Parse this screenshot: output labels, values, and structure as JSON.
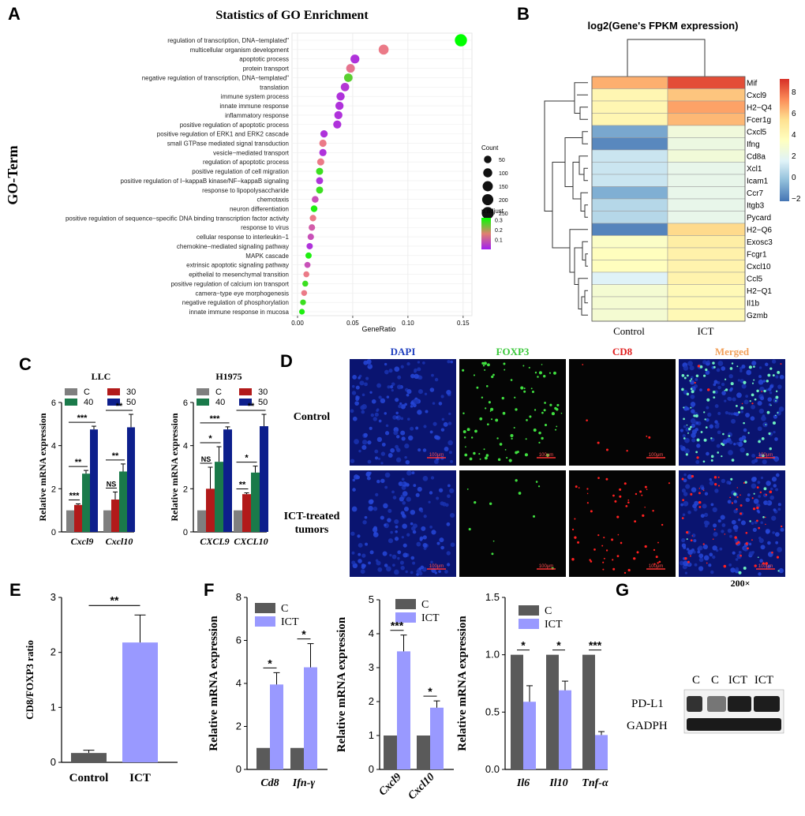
{
  "panel_labels": {
    "A": "A",
    "B": "B",
    "C": "C",
    "D": "D",
    "E": "E",
    "F": "F",
    "G": "G"
  },
  "chart_data": [
    {
      "id": "A",
      "type": "scatter",
      "title": "Statistics of GO Enrichment",
      "xlabel": "GeneRatio",
      "ylabel": "GO-Term",
      "xlim": [
        -0.005,
        0.158
      ],
      "xticks": [
        "0.00",
        "0.05",
        "0.10",
        "0.15"
      ],
      "xtick_values": [
        0.0,
        0.05,
        0.1,
        0.15
      ],
      "grid": true,
      "size_legend_title": "Count",
      "size_legend": [
        50,
        100,
        150,
        200,
        250
      ],
      "color_legend_title": "p.adjust",
      "color_legend_ticks": [
        "0.3",
        "0.2",
        "0.1"
      ],
      "color_legend_tick_values": [
        0.3,
        0.2,
        0.1
      ],
      "color_scale": {
        "low": "#a020f0",
        "mid": "#f08080",
        "high": "#00ff00"
      },
      "terms": [
        {
          "term": "regulation of transcription, DNA−templated\"",
          "ratio": 0.148,
          "count": 260,
          "padj": 0.32
        },
        {
          "term": "multicellular organism development",
          "ratio": 0.078,
          "count": 140,
          "padj": 0.15
        },
        {
          "term": "apoptotic process",
          "ratio": 0.052,
          "count": 95,
          "padj": 0.03
        },
        {
          "term": "protein transport",
          "ratio": 0.048,
          "count": 85,
          "padj": 0.14
        },
        {
          "term": "negative regulation of transcription, DNA−templated\"",
          "ratio": 0.046,
          "count": 80,
          "padj": 0.26
        },
        {
          "term": "translation",
          "ratio": 0.043,
          "count": 78,
          "padj": 0.04
        },
        {
          "term": "immune system process",
          "ratio": 0.039,
          "count": 72,
          "padj": 0.03
        },
        {
          "term": "innate immune response",
          "ratio": 0.038,
          "count": 70,
          "padj": 0.03
        },
        {
          "term": "inflammatory response",
          "ratio": 0.037,
          "count": 68,
          "padj": 0.03
        },
        {
          "term": "positive regulation of apoptotic process",
          "ratio": 0.036,
          "count": 66,
          "padj": 0.03
        },
        {
          "term": "positive regulation of ERK1 and ERK2 cascade",
          "ratio": 0.024,
          "count": 44,
          "padj": 0.03
        },
        {
          "term": "small GTPase mediated signal transduction",
          "ratio": 0.023,
          "count": 42,
          "padj": 0.15
        },
        {
          "term": "vesicle−mediated transport",
          "ratio": 0.023,
          "count": 42,
          "padj": 0.03
        },
        {
          "term": "regulation of apoptotic process",
          "ratio": 0.021,
          "count": 40,
          "padj": 0.15
        },
        {
          "term": "positive regulation of cell migration",
          "ratio": 0.02,
          "count": 38,
          "padj": 0.28
        },
        {
          "term": "positive regulation of I−kappaB kinase/NF−kappaB signaling",
          "ratio": 0.02,
          "count": 37,
          "padj": 0.03
        },
        {
          "term": "response to lipopolysaccharide",
          "ratio": 0.02,
          "count": 37,
          "padj": 0.28
        },
        {
          "term": "chemotaxis",
          "ratio": 0.016,
          "count": 30,
          "padj": 0.08
        },
        {
          "term": "neuron differentiation",
          "ratio": 0.015,
          "count": 28,
          "padj": 0.3
        },
        {
          "term": "positive regulation of sequence−specific DNA binding transcription factor activity",
          "ratio": 0.014,
          "count": 26,
          "padj": 0.15
        },
        {
          "term": "response to virus",
          "ratio": 0.013,
          "count": 25,
          "padj": 0.1
        },
        {
          "term": "cellular response to interleukin−1",
          "ratio": 0.012,
          "count": 23,
          "padj": 0.08
        },
        {
          "term": "chemokine−mediated signaling pathway",
          "ratio": 0.011,
          "count": 22,
          "padj": 0.03
        },
        {
          "term": "MAPK cascade",
          "ratio": 0.01,
          "count": 20,
          "padj": 0.3
        },
        {
          "term": "extrinsic apoptotic signaling pathway",
          "ratio": 0.009,
          "count": 18,
          "padj": 0.08
        },
        {
          "term": "epithelial to mesenchymal transition",
          "ratio": 0.008,
          "count": 16,
          "padj": 0.15
        },
        {
          "term": "positive regulation of calcium ion transport",
          "ratio": 0.007,
          "count": 15,
          "padj": 0.28
        },
        {
          "term": "camera−type eye morphogenesis",
          "ratio": 0.006,
          "count": 14,
          "padj": 0.15
        },
        {
          "term": "negative regulation of phosphorylation",
          "ratio": 0.005,
          "count": 13,
          "padj": 0.28
        },
        {
          "term": "innate immune response in mucosa",
          "ratio": 0.004,
          "count": 12,
          "padj": 0.3
        }
      ]
    },
    {
      "id": "B",
      "type": "heatmap",
      "title": "log2(Gene's FPKM expression)",
      "columns": [
        "Control",
        "ICT"
      ],
      "rows": [
        "Mif",
        "Cxcl9",
        "H2−Q4",
        "Fcer1g",
        "Cxcl5",
        "Ifng",
        "Cd8a",
        "Xcl1",
        "Icam1",
        "Ccr7",
        "Itgb3",
        "Pycard",
        "H2−Q6",
        "Exosc3",
        "Fcgr1",
        "Cxcl10",
        "Ccl5",
        "H2−Q1",
        "Il1b",
        "Gzmb"
      ],
      "values": [
        [
          6.5,
          8.6
        ],
        [
          4.0,
          6.0
        ],
        [
          4.0,
          6.8
        ],
        [
          4.0,
          6.3
        ],
        [
          -1.0,
          2.5
        ],
        [
          -1.8,
          2.3
        ],
        [
          1.0,
          2.6
        ],
        [
          1.0,
          2.0
        ],
        [
          1.0,
          2.0
        ],
        [
          -0.8,
          2.0
        ],
        [
          0.5,
          2.0
        ],
        [
          0.5,
          2.0
        ],
        [
          -1.9,
          5.5
        ],
        [
          3.2,
          4.5
        ],
        [
          3.5,
          4.3
        ],
        [
          3.5,
          4.2
        ],
        [
          1.5,
          4.2
        ],
        [
          2.8,
          3.8
        ],
        [
          2.8,
          3.8
        ],
        [
          2.8,
          3.8
        ]
      ],
      "colorbar_ticks": [
        "8",
        "6",
        "4",
        "2",
        "0",
        "−2"
      ],
      "colorbar_tick_values": [
        8,
        6,
        4,
        2,
        0,
        -2
      ],
      "vmin": -2.3,
      "vmax": 9.2,
      "colors": [
        "#4575b4",
        "#91bfdb",
        "#e0f3f8",
        "#ffffbf",
        "#fee090",
        "#fc8d59",
        "#d73027"
      ]
    },
    {
      "id": "C1",
      "type": "bar",
      "title": "LLC",
      "ylabel": "Relative mRNA expression",
      "ylim": [
        0,
        6
      ],
      "yticks": [
        "0",
        "2",
        "4",
        "6"
      ],
      "ytick_values": [
        0,
        2,
        4,
        6
      ],
      "categories": [
        "Cxcl9",
        "Cxcl10"
      ],
      "series": [
        {
          "name": "C",
          "color": "#7f7f7f",
          "values": [
            1.0,
            1.0
          ],
          "errors": [
            0.0,
            0.0
          ]
        },
        {
          "name": "30",
          "color": "#b21a1a",
          "values": [
            1.25,
            1.5
          ],
          "errors": [
            0.05,
            0.35
          ]
        },
        {
          "name": "40",
          "color": "#1a7a4a",
          "values": [
            2.7,
            2.8
          ],
          "errors": [
            0.15,
            0.35
          ]
        },
        {
          "name": "50",
          "color": "#0d1f8c",
          "values": [
            4.75,
            4.85
          ],
          "errors": [
            0.15,
            0.6
          ]
        }
      ],
      "significance": [
        {
          "cat": 0,
          "a": 0,
          "b": 1,
          "label": "***"
        },
        {
          "cat": 0,
          "a": 0,
          "b": 2,
          "label": "**"
        },
        {
          "cat": 0,
          "a": 0,
          "b": 3,
          "label": "***"
        },
        {
          "cat": 1,
          "a": 0,
          "b": 1,
          "label": "NS"
        },
        {
          "cat": 1,
          "a": 0,
          "b": 2,
          "label": "**"
        },
        {
          "cat": 1,
          "a": 0,
          "b": 3,
          "label": "**"
        }
      ]
    },
    {
      "id": "C2",
      "type": "bar",
      "title": "H1975",
      "ylabel": "Relative mRNA expression",
      "ylim": [
        0,
        6
      ],
      "yticks": [
        "0",
        "2",
        "4",
        "6"
      ],
      "ytick_values": [
        0,
        2,
        4,
        6
      ],
      "categories": [
        "CXCL9",
        "CXCL10"
      ],
      "series": [
        {
          "name": "C",
          "color": "#7f7f7f",
          "values": [
            1.0,
            1.0
          ],
          "errors": [
            0.0,
            0.0
          ]
        },
        {
          "name": "30",
          "color": "#b21a1a",
          "values": [
            2.0,
            1.75
          ],
          "errors": [
            1.0,
            0.06
          ]
        },
        {
          "name": "40",
          "color": "#1a7a4a",
          "values": [
            3.25,
            2.75
          ],
          "errors": [
            0.7,
            0.3
          ]
        },
        {
          "name": "50",
          "color": "#0d1f8c",
          "values": [
            4.75,
            4.9
          ],
          "errors": [
            0.12,
            0.55
          ]
        }
      ],
      "significance": [
        {
          "cat": 0,
          "a": 0,
          "b": 1,
          "label": "NS"
        },
        {
          "cat": 0,
          "a": 0,
          "b": 2,
          "label": "*"
        },
        {
          "cat": 0,
          "a": 0,
          "b": 3,
          "label": "***"
        },
        {
          "cat": 1,
          "a": 0,
          "b": 1,
          "label": "**"
        },
        {
          "cat": 1,
          "a": 0,
          "b": 2,
          "label": "*"
        },
        {
          "cat": 1,
          "a": 0,
          "b": 3,
          "label": "**"
        }
      ]
    },
    {
      "id": "E",
      "type": "bar",
      "ylabel": "CD8/FOXP3 ratio",
      "ylim": [
        0,
        3
      ],
      "yticks": [
        "0",
        "1",
        "2",
        "3"
      ],
      "ytick_values": [
        0,
        1,
        2,
        3
      ],
      "categories": [
        "Control",
        "ICT"
      ],
      "values": [
        0.17,
        2.18
      ],
      "errors": [
        0.05,
        0.5
      ],
      "colors": [
        "#5a5a5a",
        "#9999ff"
      ],
      "significance": [
        {
          "a": 0,
          "b": 1,
          "label": "**"
        }
      ]
    },
    {
      "id": "F1",
      "type": "bar",
      "ylabel": "Relative mRNA expression",
      "ylim": [
        0,
        8
      ],
      "yticks": [
        "0",
        "2",
        "4",
        "6",
        "8"
      ],
      "ytick_values": [
        0,
        2,
        4,
        6,
        8
      ],
      "categories": [
        "Cd8",
        "Ifn-γ"
      ],
      "series": [
        {
          "name": "C",
          "color": "#5a5a5a",
          "values": [
            1.0,
            1.0
          ],
          "errors": [
            0,
            0
          ]
        },
        {
          "name": "ICT",
          "color": "#9999ff",
          "values": [
            3.95,
            4.75
          ],
          "errors": [
            0.55,
            1.1
          ]
        }
      ],
      "significance": [
        {
          "cat": 0,
          "label": "*"
        },
        {
          "cat": 1,
          "label": "*"
        }
      ]
    },
    {
      "id": "F2",
      "type": "bar",
      "ylabel": "Relative mRNA expression",
      "ylim": [
        0,
        5
      ],
      "yticks": [
        "0",
        "1",
        "2",
        "3",
        "4",
        "5"
      ],
      "ytick_values": [
        0,
        1,
        2,
        3,
        4,
        5
      ],
      "categories": [
        "Cxcl9",
        "Cxcl10"
      ],
      "series": [
        {
          "name": "C",
          "color": "#5a5a5a",
          "values": [
            1.0,
            1.0
          ],
          "errors": [
            0,
            0
          ]
        },
        {
          "name": "ICT",
          "color": "#9999ff",
          "values": [
            3.48,
            1.82
          ],
          "errors": [
            0.48,
            0.2
          ]
        }
      ],
      "significance": [
        {
          "cat": 0,
          "label": "***"
        },
        {
          "cat": 1,
          "label": "*"
        }
      ]
    },
    {
      "id": "F3",
      "type": "bar",
      "ylabel": "Relative mRNA expression",
      "ylim": [
        0,
        1.5
      ],
      "yticks": [
        "0.0",
        "0.5",
        "1.0",
        "1.5"
      ],
      "ytick_values": [
        0,
        0.5,
        1.0,
        1.5
      ],
      "categories": [
        "Il6",
        "Il10",
        "Tnf-α"
      ],
      "series": [
        {
          "name": "C",
          "color": "#5a5a5a",
          "values": [
            1.0,
            1.0,
            1.0
          ],
          "errors": [
            0,
            0,
            0
          ]
        },
        {
          "name": "ICT",
          "color": "#9999ff",
          "values": [
            0.59,
            0.69,
            0.3
          ],
          "errors": [
            0.14,
            0.08,
            0.03
          ]
        }
      ],
      "significance": [
        {
          "cat": 0,
          "label": "*"
        },
        {
          "cat": 1,
          "label": "*"
        },
        {
          "cat": 2,
          "label": "***"
        }
      ]
    }
  ],
  "panel_d": {
    "columns": [
      {
        "label": "DAPI",
        "color": "#1f3fbf"
      },
      {
        "label": "FOXP3",
        "color": "#3ac83a"
      },
      {
        "label": "CD8",
        "color": "#e02020"
      },
      {
        "label": "Merged",
        "color": "#f2a05a"
      }
    ],
    "rows": [
      "Control",
      "ICT-treated tumors"
    ],
    "scale_bar": "100μm",
    "magnification": "200×"
  },
  "panel_g": {
    "lanes": [
      "C",
      "C",
      "ICT",
      "ICT"
    ],
    "bands": [
      "PD-L1",
      "GADPH"
    ]
  }
}
